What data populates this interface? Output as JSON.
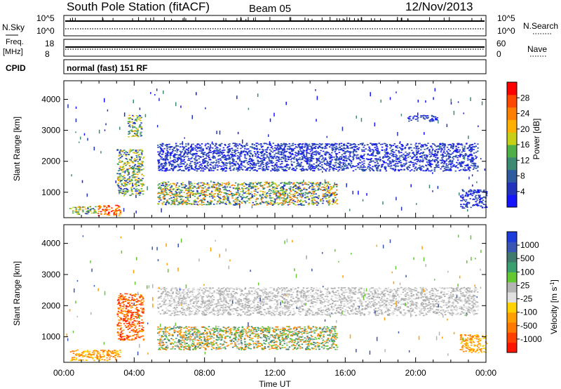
{
  "header": {
    "station": "South Pole Station (fitACF)",
    "beam": "Beam 05",
    "date": "12/Nov/2013"
  },
  "strip_panels": {
    "nsky": {
      "left_label": "N.Sky",
      "left_ticks": [
        "10^5",
        "10^0"
      ],
      "right_ticks": [
        "10^5",
        "10^0"
      ],
      "right_label": "N.Search"
    },
    "freq": {
      "left_label_line1": "Freq.",
      "left_label_line2": "[MHz]",
      "left_ticks": [
        "18",
        "8"
      ],
      "right_ticks": [
        "60",
        "0"
      ],
      "right_label": "Nave"
    },
    "cpid": {
      "left_label": "CPID",
      "text": "normal (fast) 151 RF"
    }
  },
  "chart_data": [
    {
      "type": "heatmap",
      "panel": "power",
      "ylabel": "Slant Range [km]",
      "yticks": [
        1000,
        2000,
        3000,
        4000
      ],
      "ylim": [
        180,
        4600
      ],
      "xlim_hours": [
        0,
        24
      ],
      "colorbar": {
        "label": "Power [dB]",
        "ticks": [
          4,
          8,
          12,
          16,
          20,
          24,
          28
        ],
        "colors": [
          "#1414ff",
          "#2233bb",
          "#2e5aa0",
          "#3d8a72",
          "#50b048",
          "#c8d016",
          "#ffb000",
          "#ff8000",
          "#ff4800",
          "#ff0000"
        ]
      },
      "echo_regions": [
        {
          "t_start": 0.3,
          "t_end": 1.8,
          "r_min": 300,
          "r_max": 560,
          "level": "medium"
        },
        {
          "t_start": 1.9,
          "t_end": 3.2,
          "r_min": 250,
          "r_max": 600,
          "level": "high"
        },
        {
          "t_start": 3.0,
          "t_end": 4.5,
          "r_min": 900,
          "r_max": 2400,
          "level": "medium"
        },
        {
          "t_start": 3.6,
          "t_end": 4.4,
          "r_min": 2800,
          "r_max": 3500,
          "level": "medium"
        },
        {
          "t_start": 5.3,
          "t_end": 15.5,
          "r_min": 600,
          "r_max": 1350,
          "level": "medium-high"
        },
        {
          "t_start": 5.3,
          "t_end": 23.5,
          "r_min": 1700,
          "r_max": 2600,
          "level": "low"
        },
        {
          "t_start": 19.5,
          "t_end": 21.2,
          "r_min": 3300,
          "r_max": 3500,
          "level": "low"
        },
        {
          "t_start": 22.5,
          "t_end": 24.0,
          "r_min": 500,
          "r_max": 1100,
          "level": "low"
        }
      ]
    },
    {
      "type": "heatmap",
      "panel": "velocity",
      "ylabel": "Slant Range [km]",
      "yticks": [
        1000,
        2000,
        3000,
        4000
      ],
      "ylim": [
        180,
        4600
      ],
      "xlabel": "Time UT",
      "xticks": [
        "00:00",
        "04:00",
        "08:00",
        "12:00",
        "16:00",
        "20:00",
        "00:00"
      ],
      "xlim_hours": [
        0,
        24
      ],
      "colorbar": {
        "label": "Velocity [m s",
        "label_sup": "-1",
        "label_close": "]",
        "ticks": [
          "1000",
          "500",
          "100",
          "25",
          "-25",
          "-100",
          "-500",
          "-1000"
        ],
        "colors": [
          "#1e3cdc",
          "#3a56b4",
          "#3f7a6c",
          "#3aa070",
          "#64c832",
          "#b4b4b4",
          "#e0e0e0",
          "#ffd200",
          "#ffa000",
          "#ff7800",
          "#ff4000",
          "#ff1400"
        ]
      },
      "echo_regions": [
        {
          "t_start": 0.3,
          "t_end": 3.2,
          "r_min": 250,
          "r_max": 600,
          "level": "orange"
        },
        {
          "t_start": 3.0,
          "t_end": 4.5,
          "r_min": 900,
          "r_max": 2400,
          "level": "orange-red"
        },
        {
          "t_start": 5.3,
          "t_end": 15.5,
          "r_min": 600,
          "r_max": 1350,
          "level": "green-orange"
        },
        {
          "t_start": 5.3,
          "t_end": 23.5,
          "r_min": 1700,
          "r_max": 2600,
          "level": "grey"
        },
        {
          "t_start": 22.5,
          "t_end": 24.0,
          "r_min": 500,
          "r_max": 1100,
          "level": "orange"
        }
      ]
    }
  ]
}
